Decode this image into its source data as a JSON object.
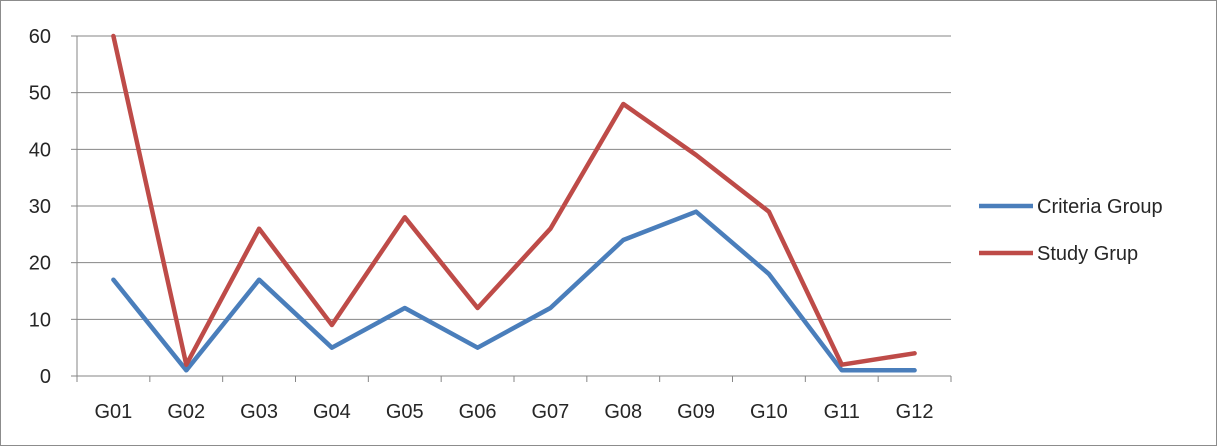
{
  "chart_data": {
    "type": "line",
    "title": "",
    "xlabel": "",
    "ylabel": "",
    "categories": [
      "G01",
      "G02",
      "G03",
      "G04",
      "G05",
      "G06",
      "G07",
      "G08",
      "G09",
      "G10",
      "G11",
      "G12"
    ],
    "series": [
      {
        "name": "Criteria Group",
        "color": "#4a7ebb",
        "values": [
          17,
          1,
          17,
          5,
          12,
          5,
          12,
          24,
          29,
          18,
          1,
          1
        ]
      },
      {
        "name": "Study Grup",
        "color": "#be4b48",
        "values": [
          60,
          2,
          26,
          9,
          28,
          12,
          26,
          48,
          39,
          29,
          2,
          4
        ]
      }
    ],
    "ylim": [
      0,
      60
    ],
    "yticks": [
      0,
      10,
      20,
      30,
      40,
      50,
      60
    ],
    "grid": true,
    "legend_position": "right"
  }
}
